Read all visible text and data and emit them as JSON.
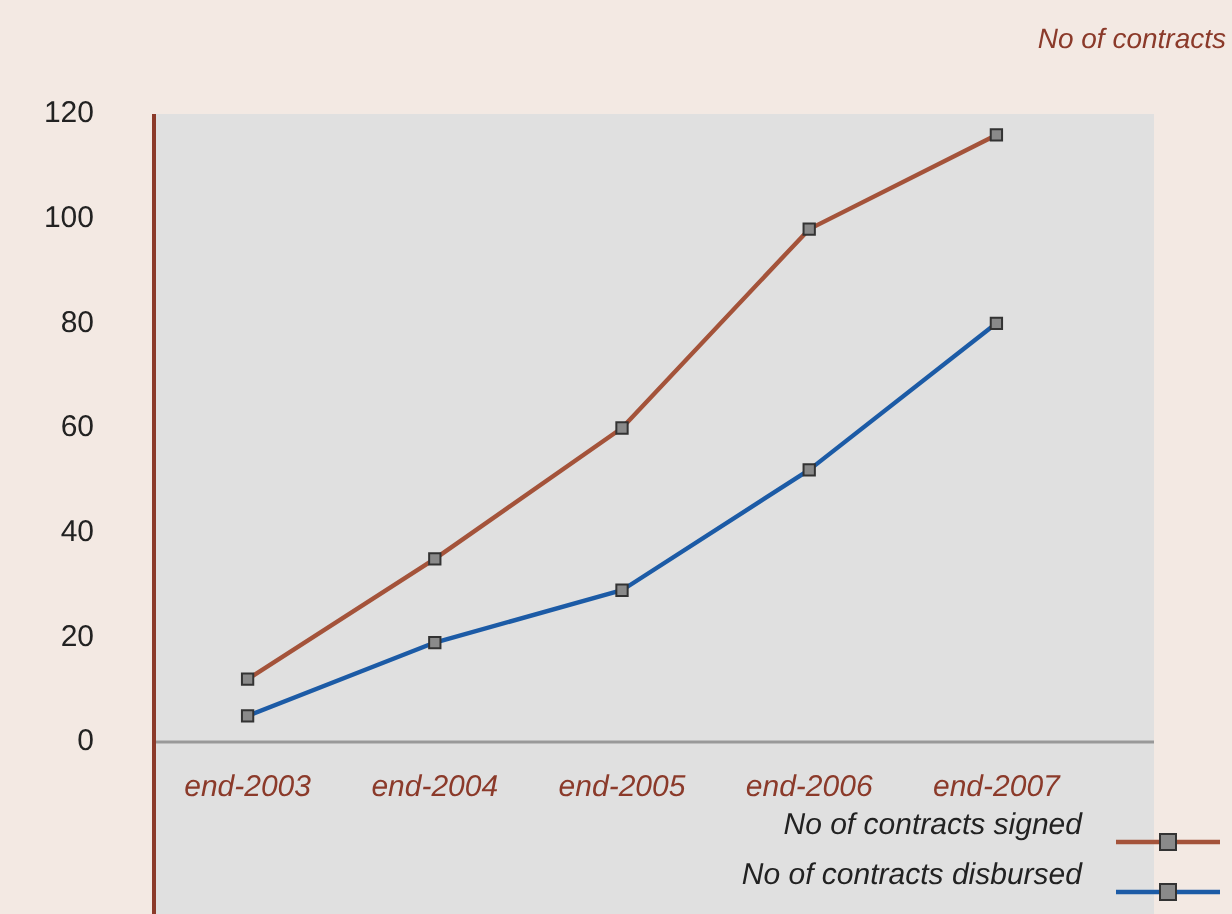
{
  "chart_data": {
    "type": "line",
    "ylabel": "No of contracts",
    "categories": [
      "end-2003",
      "end-2004",
      "end-2005",
      "end-2006",
      "end-2007"
    ],
    "series": [
      {
        "name": "No of contracts signed",
        "color": "#a4533a",
        "values": [
          12,
          35,
          60,
          98,
          116
        ]
      },
      {
        "name": "No of contracts disbursed",
        "color": "#1c5ba6",
        "values": [
          5,
          19,
          29,
          52,
          80
        ]
      }
    ],
    "ylim": [
      0,
      120
    ],
    "yticks": [
      0,
      20,
      40,
      60,
      80,
      100,
      120
    ],
    "grid": false,
    "legend": "bottom right",
    "marker": "square",
    "line_style": "solid"
  }
}
